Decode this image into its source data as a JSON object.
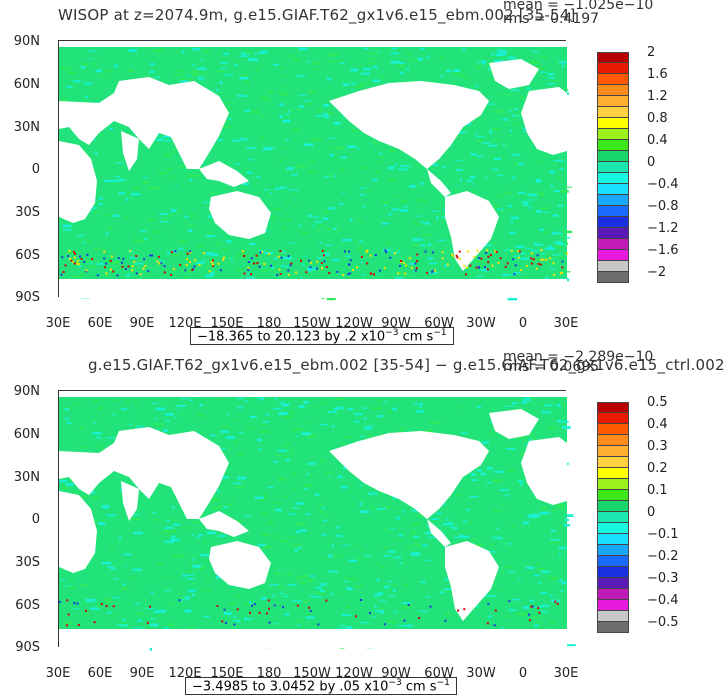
{
  "colors": {
    "ocean_base": "#22e37a",
    "ocean_cyan": "#19f0d4",
    "ocean_green": "#2ee85c",
    "land": "#ffffff",
    "noise_red": "#d80000",
    "noise_blue": "#1a39e0",
    "noise_yellow": "#ffe000"
  },
  "lon_labels": [
    "30E",
    "60E",
    "90E",
    "120E",
    "150E",
    "180",
    "150W",
    "120W",
    "90W",
    "60W",
    "30W",
    "0",
    "30E"
  ],
  "lat_labels": [
    "90N",
    "60N",
    "30N",
    "0",
    "30S",
    "60S",
    "90S"
  ],
  "panels": [
    {
      "title": "WISOP at z=2074.9m, g.e15.GIAF.T62_gx1v6.e15_ebm.002 [35-54]",
      "mean": "mean = −1.025e−10",
      "rms": "rms = 0.4197",
      "range_text": "−18.365 to 20.123 by .2 x10",
      "range_exp": "−3",
      "range_unit": " cm s",
      "range_unit_exp": "−1",
      "colorbar": {
        "labels": [
          "2",
          "1.6",
          "1.2",
          "0.8",
          "0.4",
          "0",
          "−0.4",
          "−0.8",
          "−1.2",
          "−1.6",
          "−2"
        ],
        "colors": [
          "#b80000",
          "#e81a00",
          "#ff5a00",
          "#ff8c1a",
          "#ffb030",
          "#ffd040",
          "#ffff00",
          "#9cf21a",
          "#3ce81a",
          "#19d66a",
          "#1ae8b0",
          "#18f7e0",
          "#1ae0ff",
          "#1aa8ff",
          "#1a6cff",
          "#1a30e0",
          "#5a1ab8",
          "#c01ab8",
          "#e81ae0",
          "#c8c8c8",
          "#6e6e6e"
        ]
      }
    },
    {
      "title": "g.e15.GIAF.T62_gx1v6.e15_ebm.002 [35-54] − g.e15.GIAF.T62_gx1v6.e15_ctrl.002",
      "mean": "mean = −2.289e−10",
      "rms": "rms = 0.0695",
      "range_text": "−3.4985 to 3.0452 by .05 x10",
      "range_exp": "−3",
      "range_unit": " cm s",
      "range_unit_exp": "−1",
      "colorbar": {
        "labels": [
          "0.5",
          "0.4",
          "0.3",
          "0.2",
          "0.1",
          "0",
          "−0.1",
          "−0.2",
          "−0.3",
          "−0.4",
          "−0.5"
        ],
        "colors": [
          "#b80000",
          "#e81a00",
          "#ff5a00",
          "#ff8c1a",
          "#ffb030",
          "#ffd040",
          "#ffff00",
          "#9cf21a",
          "#3ce81a",
          "#19d66a",
          "#1ae8b0",
          "#18f7e0",
          "#1ae0ff",
          "#1aa8ff",
          "#1a6cff",
          "#1a30e0",
          "#5a1ab8",
          "#c01ab8",
          "#e81ae0",
          "#c8c8c8",
          "#6e6e6e"
        ]
      }
    }
  ]
}
